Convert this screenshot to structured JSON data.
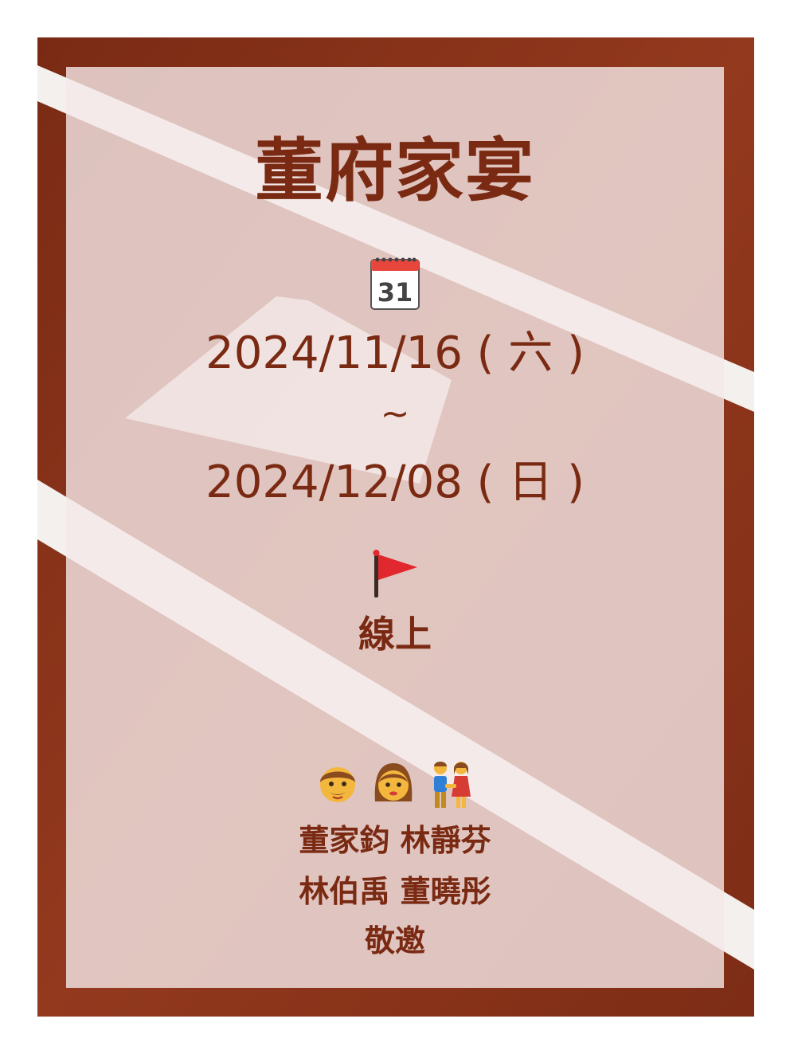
{
  "invitation": {
    "title": "董府家宴",
    "date_start": "2024/11/16 ( 六 )",
    "date_separator": "~",
    "date_end": "2024/12/08 ( 日 )",
    "location": "線上",
    "hosts_line1": "董家鈞 林靜芬",
    "hosts_line2": "林伯禹 董曉彤",
    "hosts_line3": "敬邀"
  },
  "icons": {
    "calendar": "calendar-icon",
    "flag": "red-flag-icon",
    "man": "man-icon",
    "woman": "woman-icon",
    "couple": "couple-holding-hands-icon"
  },
  "colors": {
    "text": "#7a2a12",
    "track_red": "#8a3219",
    "card_overlay": "#f5e8e8",
    "flag_red": "#e0282e"
  }
}
